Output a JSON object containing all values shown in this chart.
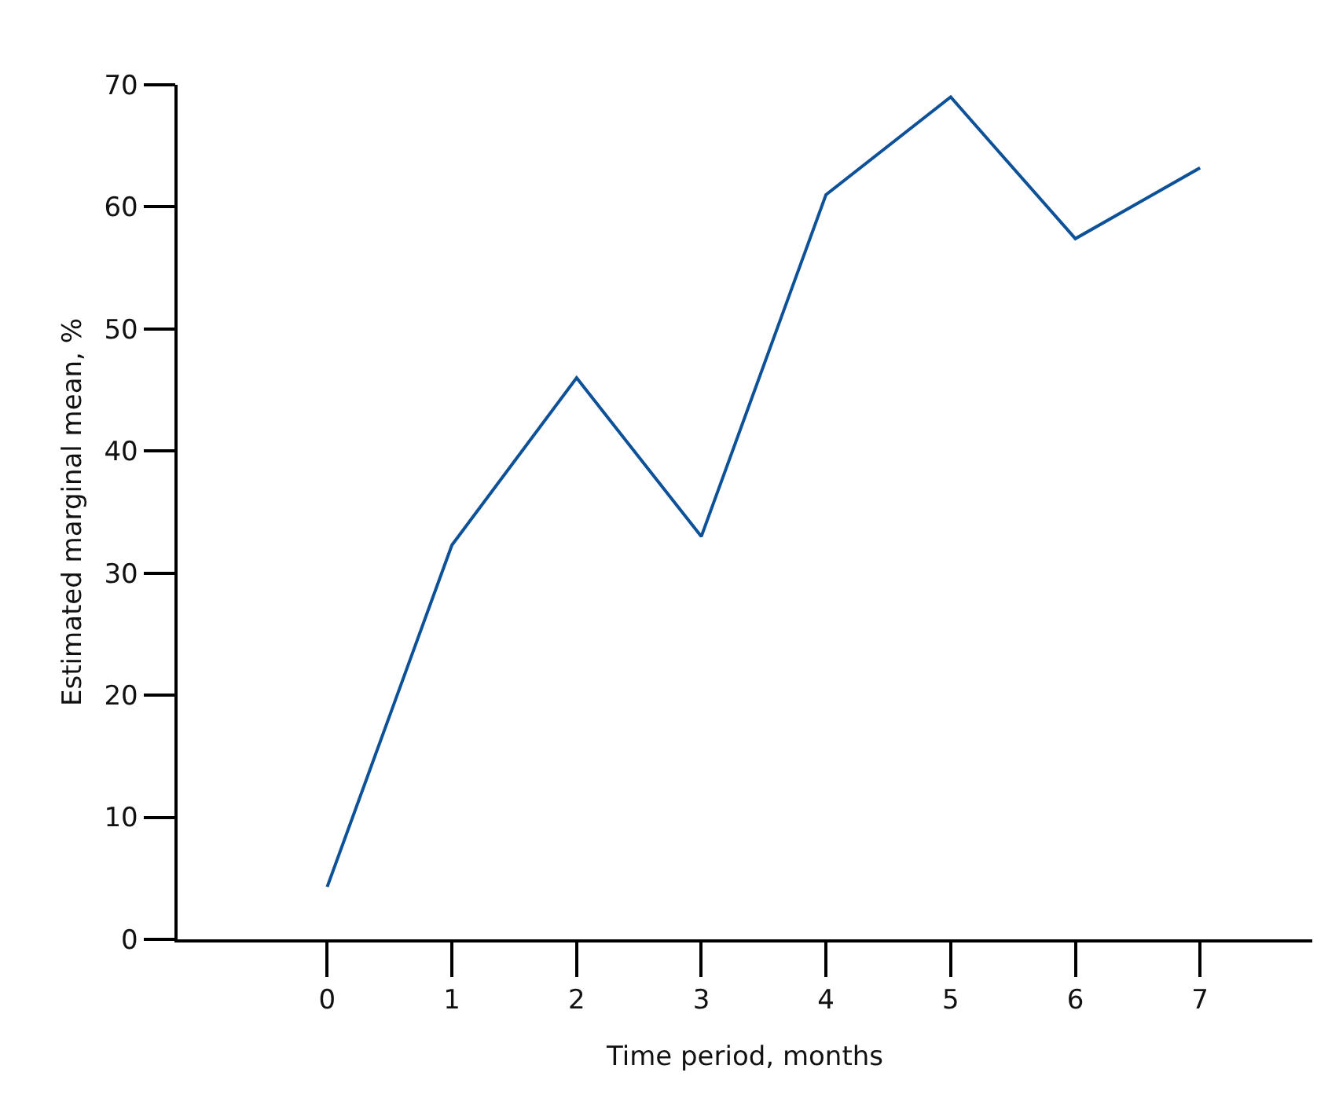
{
  "chart_data": {
    "type": "line",
    "xlabel": "Time period, months",
    "ylabel": "Estimated marginal mean, %",
    "x": [
      0,
      1,
      2,
      3,
      4,
      5,
      6,
      7
    ],
    "series": [
      {
        "color": "#0d5199",
        "values": [
          4.3,
          32.3,
          46.0,
          33.0,
          61.0,
          69.0,
          57.4,
          63.2
        ]
      }
    ],
    "xlim": [
      -1.2,
      7.9
    ],
    "xticks": [
      0,
      1,
      2,
      3,
      4,
      5,
      6,
      7
    ],
    "ylim": [
      0,
      70
    ],
    "yticks": [
      0,
      10,
      20,
      30,
      40,
      50,
      60,
      70
    ],
    "marker": "none",
    "line_style": "solid"
  }
}
